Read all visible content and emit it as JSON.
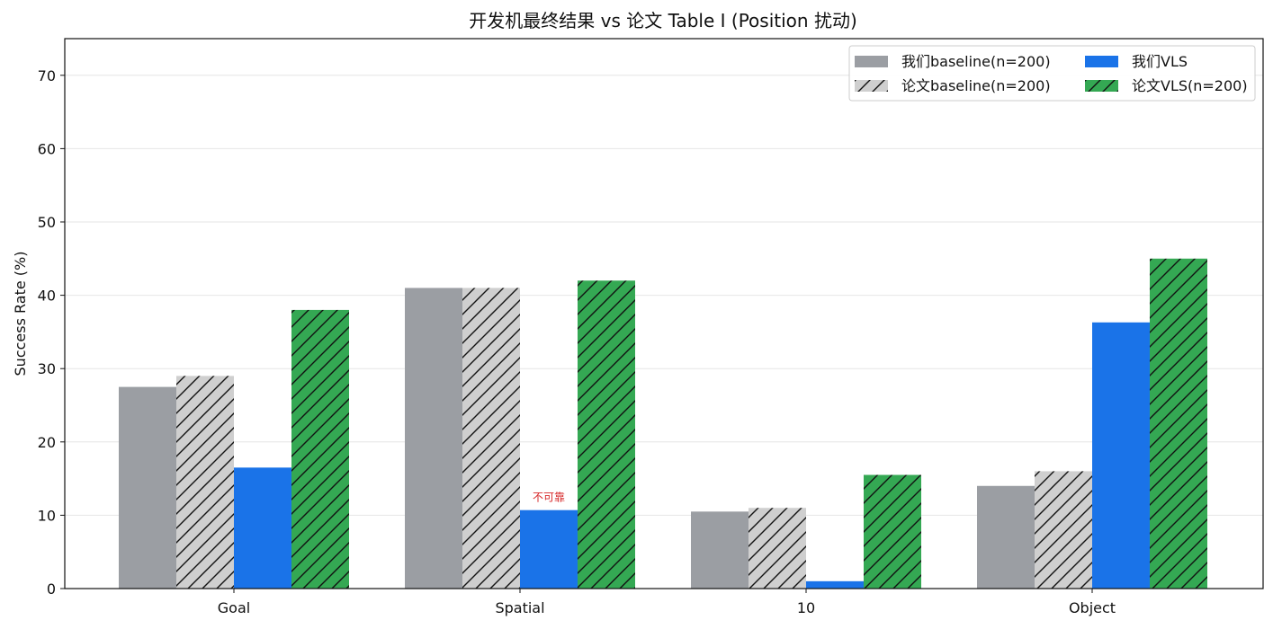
{
  "chart_data": {
    "type": "bar",
    "title": "开发机最终结果 vs 论文 Table I (Position 扰动)",
    "xlabel": "",
    "ylabel": "Success Rate (%)",
    "ylim": [
      0,
      75
    ],
    "yticks": [
      0,
      10,
      20,
      30,
      40,
      50,
      60,
      70
    ],
    "grid": "horizontal",
    "legend_position": "top-right",
    "categories": [
      "Goal",
      "Spatial",
      "10",
      "Object"
    ],
    "series": [
      {
        "name": "我们baseline(n=200)",
        "values": [
          27.5,
          41,
          10.5,
          14
        ],
        "color": "#9b9ea3",
        "hatch": false
      },
      {
        "name": "论文baseline(n=200)",
        "values": [
          29,
          41,
          11,
          16
        ],
        "color": "#cfcfcf",
        "hatch": true
      },
      {
        "name": "我们VLS",
        "values": [
          16.5,
          10.7,
          1,
          36.3
        ],
        "color": "#1a73e8",
        "hatch": false
      },
      {
        "name": "论文VLS(n=200)",
        "values": [
          38,
          42,
          15.5,
          45
        ],
        "color": "#34a853",
        "hatch": true
      }
    ],
    "annotations": [
      {
        "text": "不可靠",
        "category": "Spatial",
        "series": 2,
        "color": "#d62728"
      }
    ]
  }
}
